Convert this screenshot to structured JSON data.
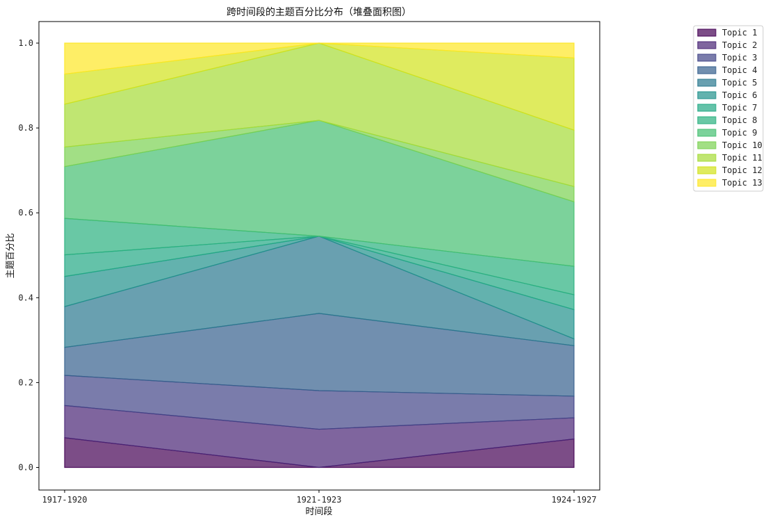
{
  "chart_data": {
    "type": "area",
    "stacked": true,
    "title": "跨时间段的主题百分比分布（堆叠面积图）",
    "xlabel": "时间段",
    "ylabel": "主题百分比",
    "categories": [
      "1917-1920",
      "1921-1923",
      "1924-1927"
    ],
    "ylim": [
      0,
      1.05
    ],
    "yticks": [
      0.0,
      0.2,
      0.4,
      0.6,
      0.8,
      1.0
    ],
    "ytick_labels": [
      "0.0",
      "0.2",
      "0.4",
      "0.6",
      "0.8",
      "1.0"
    ],
    "grid": false,
    "legend_position": "outside-right",
    "series": [
      {
        "name": "Topic 1",
        "color": "#440154",
        "values": [
          0.07,
          0.0,
          0.067
        ]
      },
      {
        "name": "Topic 2",
        "color": "#482475",
        "values": [
          0.076,
          0.09,
          0.05
        ]
      },
      {
        "name": "Topic 3",
        "color": "#414487",
        "values": [
          0.071,
          0.091,
          0.051
        ]
      },
      {
        "name": "Topic 4",
        "color": "#355f8d",
        "values": [
          0.066,
          0.182,
          0.119
        ]
      },
      {
        "name": "Topic 5",
        "color": "#2a788e",
        "values": [
          0.096,
          0.182,
          0.016
        ]
      },
      {
        "name": "Topic 6",
        "color": "#21918c",
        "values": [
          0.071,
          0.0,
          0.069
        ]
      },
      {
        "name": "Topic 7",
        "color": "#22a884",
        "values": [
          0.051,
          0.0,
          0.035
        ]
      },
      {
        "name": "Topic 8",
        "color": "#2ab07f",
        "values": [
          0.086,
          0.0,
          0.067
        ]
      },
      {
        "name": "Topic 9",
        "color": "#44bf70",
        "values": [
          0.122,
          0.273,
          0.152
        ]
      },
      {
        "name": "Topic 10",
        "color": "#7ad151",
        "values": [
          0.046,
          0.0,
          0.036
        ]
      },
      {
        "name": "Topic 11",
        "color": "#a5db36",
        "values": [
          0.101,
          0.182,
          0.133
        ]
      },
      {
        "name": "Topic 12",
        "color": "#d2e21b",
        "values": [
          0.071,
          0.0,
          0.17
        ]
      },
      {
        "name": "Topic 13",
        "color": "#fde725",
        "values": [
          0.073,
          0.0,
          0.035
        ]
      }
    ]
  }
}
